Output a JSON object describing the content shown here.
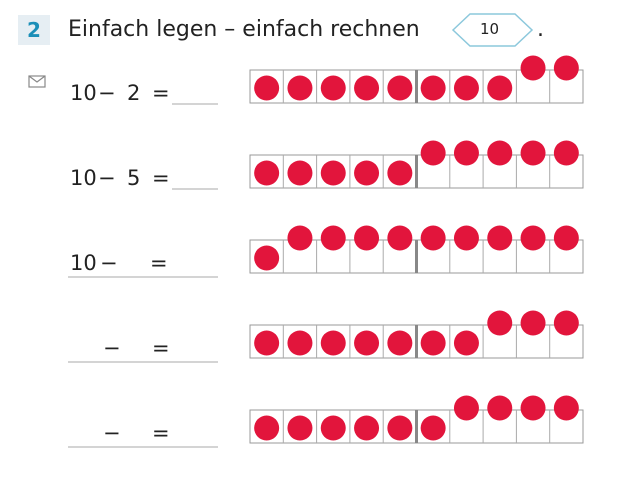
{
  "task": {
    "number": "2",
    "title": "Einfach legen – einfach rechnen",
    "badge": "10",
    "period": "."
  },
  "rows": [
    {
      "parts": [
        "10",
        "−",
        "2",
        "="
      ]
    },
    {
      "parts": [
        "10",
        "−",
        "5",
        "="
      ]
    },
    {
      "parts": [
        "10",
        "−",
        "="
      ]
    },
    {
      "parts": [
        "−",
        "="
      ]
    },
    {
      "parts": [
        "−",
        "="
      ]
    }
  ]
}
